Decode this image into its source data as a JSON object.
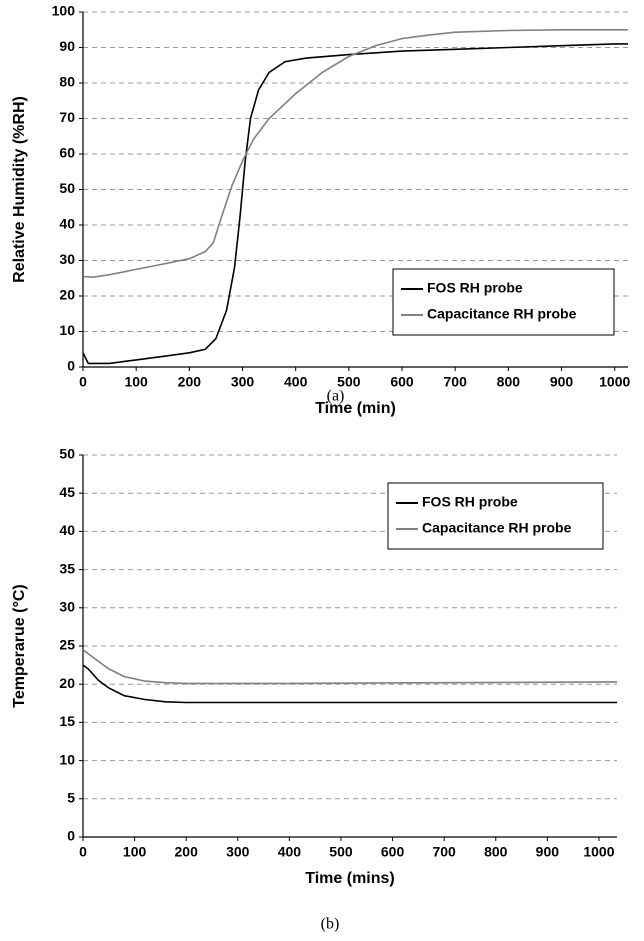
{
  "chart_data": [
    {
      "type": "line",
      "caption": "(a)",
      "x_label": "Time (min)",
      "y_label": "Relative Humidity (%RH)",
      "xlim": [
        0,
        1025
      ],
      "ylim": [
        0,
        100
      ],
      "xticks": [
        0,
        100,
        200,
        300,
        400,
        500,
        600,
        700,
        800,
        900,
        1000
      ],
      "yticks": [
        0,
        10,
        20,
        30,
        40,
        50,
        60,
        70,
        80,
        90,
        100
      ],
      "grid": true,
      "legend": "lower right",
      "series": [
        {
          "name": "FOS RH probe",
          "color": "#000000",
          "x": [
            0,
            10,
            50,
            100,
            150,
            200,
            230,
            250,
            270,
            285,
            295,
            305,
            315,
            330,
            350,
            380,
            420,
            500,
            600,
            700,
            800,
            900,
            1000,
            1025
          ],
          "values": [
            4,
            1,
            1,
            2,
            3,
            4,
            5,
            8,
            16,
            28,
            42,
            58,
            70,
            78,
            83,
            86,
            87,
            88,
            89,
            89.5,
            90,
            90.5,
            91,
            91
          ]
        },
        {
          "name": "Capacitance RH probe",
          "color": "#808080",
          "x": [
            0,
            20,
            50,
            100,
            150,
            200,
            230,
            245,
            260,
            280,
            300,
            320,
            350,
            400,
            450,
            500,
            550,
            600,
            650,
            700,
            800,
            900,
            1025
          ],
          "values": [
            25.5,
            25.3,
            26,
            27.5,
            29,
            30.5,
            32.5,
            35,
            42,
            51,
            58,
            64,
            70,
            77,
            83,
            87.5,
            90.5,
            92.5,
            93.5,
            94.3,
            94.8,
            95,
            95
          ]
        }
      ]
    },
    {
      "type": "line",
      "caption": "(b)",
      "x_label": "Time (mins)",
      "y_label": "Temperarue (°C)",
      "xlim": [
        0,
        1035
      ],
      "ylim": [
        0,
        50
      ],
      "xticks": [
        0,
        100,
        200,
        300,
        400,
        500,
        600,
        700,
        800,
        900,
        1000
      ],
      "yticks": [
        0,
        5,
        10,
        15,
        20,
        25,
        30,
        35,
        40,
        45,
        50
      ],
      "grid": true,
      "legend": "upper right",
      "series": [
        {
          "name": "FOS RH probe",
          "color": "#000000",
          "x": [
            0,
            10,
            30,
            50,
            80,
            120,
            160,
            200,
            300,
            500,
            700,
            900,
            1035
          ],
          "values": [
            22.5,
            22,
            20.5,
            19.5,
            18.5,
            18,
            17.7,
            17.6,
            17.6,
            17.6,
            17.6,
            17.6,
            17.6
          ]
        },
        {
          "name": "Capacitance RH probe",
          "color": "#808080",
          "x": [
            0,
            20,
            50,
            80,
            120,
            160,
            200,
            400,
            700,
            1035
          ],
          "values": [
            24.5,
            23.5,
            22,
            21,
            20.4,
            20.2,
            20.1,
            20.1,
            20.2,
            20.3
          ]
        }
      ]
    }
  ]
}
